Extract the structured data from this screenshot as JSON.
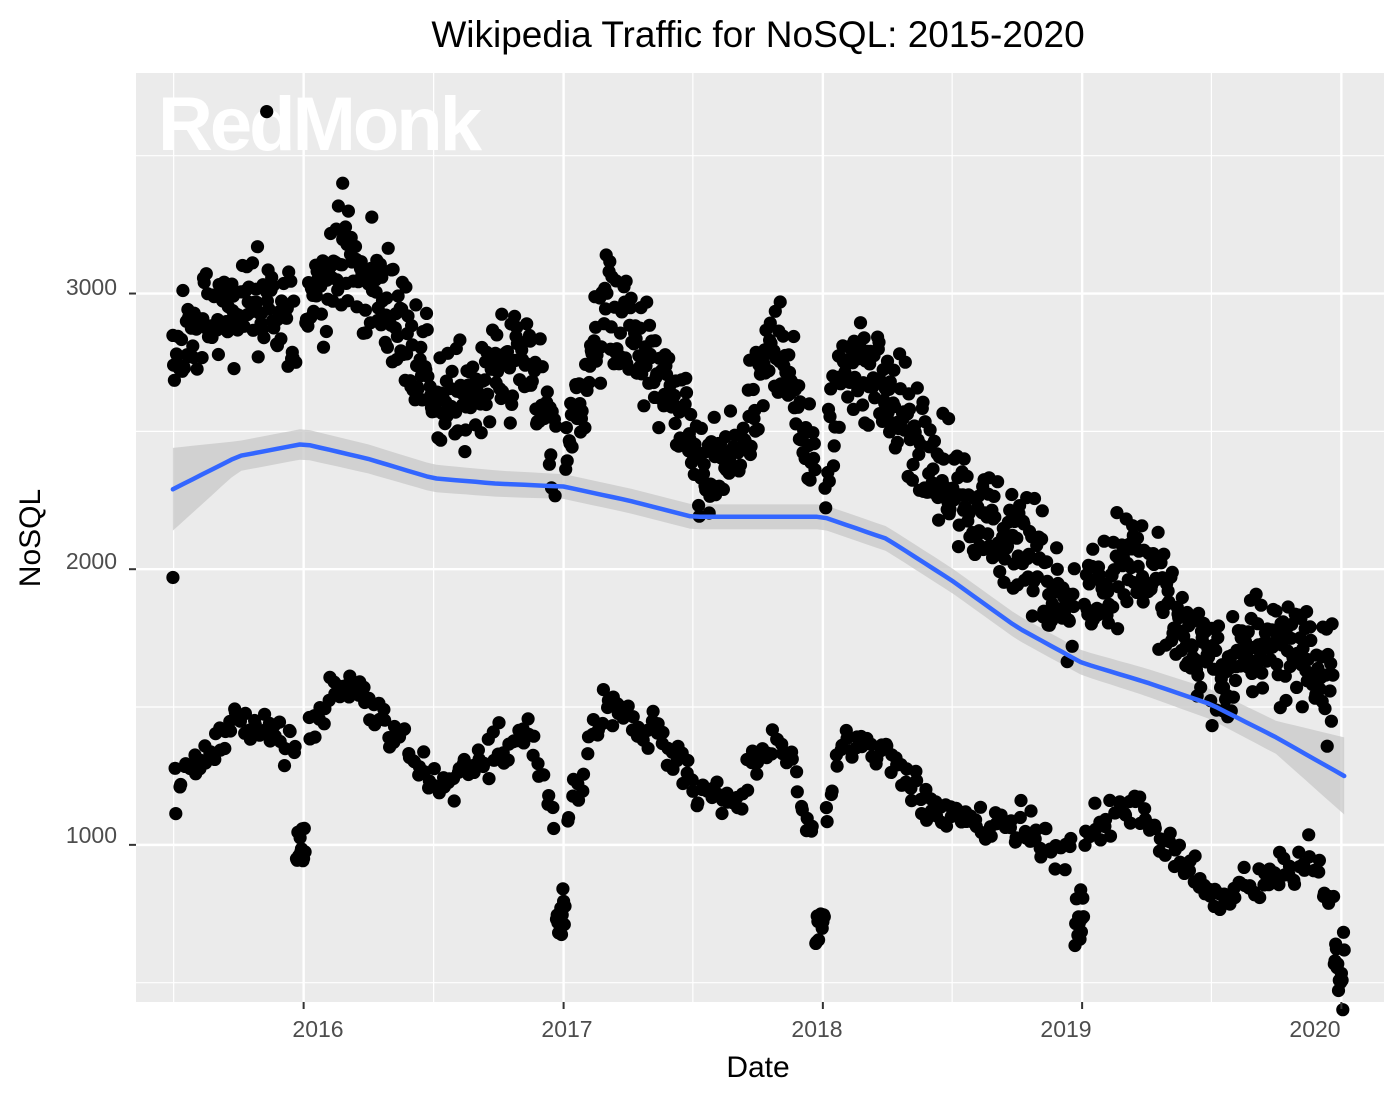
{
  "chart_data": {
    "type": "scatter",
    "title": "Wikipedia Traffic for NoSQL: 2015-2020",
    "xlabel": "Date",
    "ylabel": "NoSQL",
    "watermark": "RedMonk",
    "x_ticks": [
      "2016",
      "2017",
      "2018",
      "2019",
      "2020"
    ],
    "y_ticks": [
      "1000",
      "2000",
      "3000"
    ],
    "xlim": [
      "2015-05-10",
      "2020-03-01"
    ],
    "ylim": [
      430,
      3800
    ],
    "grid": true,
    "panel_background": "#ebebeb",
    "point_color": "#000000",
    "smooth_color": "#3366ff",
    "ribbon_color": "#c8c8c8",
    "outliers": [
      {
        "date": "2015-11-10",
        "value": 3660
      },
      {
        "date": "2015-07-01",
        "value": 1970
      },
      {
        "date": "2016-02-25",
        "value": 3400
      }
    ],
    "series": [
      {
        "kind": "weekday",
        "anchors": [
          [
            "2015-07-01",
            2800
          ],
          [
            "2015-10-01",
            2980
          ],
          [
            "2015-12-15",
            2880
          ],
          [
            "2016-03-01",
            3150
          ],
          [
            "2016-05-15",
            2880
          ],
          [
            "2016-07-15",
            2580
          ],
          [
            "2016-09-15",
            2720
          ],
          [
            "2016-11-15",
            2750
          ],
          [
            "2016-12-25",
            2350
          ],
          [
            "2017-03-01",
            2950
          ],
          [
            "2017-05-15",
            2700
          ],
          [
            "2017-07-15",
            2330
          ],
          [
            "2017-09-01",
            2400
          ],
          [
            "2017-11-01",
            2850
          ],
          [
            "2017-12-25",
            2300
          ],
          [
            "2018-02-01",
            2760
          ],
          [
            "2018-04-01",
            2650
          ],
          [
            "2018-06-01",
            2380
          ],
          [
            "2018-08-01",
            2200
          ],
          [
            "2018-10-01",
            2140
          ],
          [
            "2018-12-01",
            1880
          ],
          [
            "2019-01-15",
            1950
          ],
          [
            "2019-03-15",
            2080
          ],
          [
            "2019-05-15",
            1800
          ],
          [
            "2019-07-15",
            1620
          ],
          [
            "2019-09-15",
            1740
          ],
          [
            "2019-11-15",
            1700
          ],
          [
            "2020-01-05",
            1500
          ]
        ]
      },
      {
        "kind": "weekend",
        "anchors": [
          [
            "2015-07-01",
            1180
          ],
          [
            "2015-10-01",
            1450
          ],
          [
            "2015-12-15",
            1360
          ],
          [
            "2016-03-01",
            1580
          ],
          [
            "2016-05-15",
            1420
          ],
          [
            "2016-07-15",
            1180
          ],
          [
            "2016-09-15",
            1320
          ],
          [
            "2016-11-15",
            1440
          ],
          [
            "2016-12-25",
            1000
          ],
          [
            "2017-03-01",
            1520
          ],
          [
            "2017-05-15",
            1390
          ],
          [
            "2017-07-15",
            1180
          ],
          [
            "2017-09-01",
            1150
          ],
          [
            "2017-11-01",
            1420
          ],
          [
            "2017-12-25",
            950
          ],
          [
            "2018-02-01",
            1400
          ],
          [
            "2018-04-01",
            1330
          ],
          [
            "2018-06-01",
            1120
          ],
          [
            "2018-08-01",
            1080
          ],
          [
            "2018-10-01",
            1080
          ],
          [
            "2018-12-01",
            950
          ],
          [
            "2019-01-15",
            1040
          ],
          [
            "2019-03-15",
            1150
          ],
          [
            "2019-05-15",
            950
          ],
          [
            "2019-07-15",
            780
          ],
          [
            "2019-09-15",
            880
          ],
          [
            "2019-11-15",
            950
          ],
          [
            "2020-01-05",
            700
          ]
        ]
      }
    ],
    "smooth": {
      "values": [
        [
          "2015-07-01",
          2290
        ],
        [
          "2015-10-01",
          2410
        ],
        [
          "2016-01-01",
          2455
        ],
        [
          "2016-04-01",
          2400
        ],
        [
          "2016-07-01",
          2330
        ],
        [
          "2016-10-01",
          2310
        ],
        [
          "2017-01-01",
          2300
        ],
        [
          "2017-04-01",
          2250
        ],
        [
          "2017-07-01",
          2190
        ],
        [
          "2017-10-01",
          2190
        ],
        [
          "2018-01-01",
          2190
        ],
        [
          "2018-04-01",
          2110
        ],
        [
          "2018-07-01",
          1960
        ],
        [
          "2018-10-01",
          1790
        ],
        [
          "2019-01-01",
          1660
        ],
        [
          "2019-04-01",
          1590
        ],
        [
          "2019-07-01",
          1510
        ],
        [
          "2019-10-01",
          1390
        ],
        [
          "2020-01-05",
          1250
        ]
      ],
      "band_halfwidth": [
        [
          "2015-07-01",
          150
        ],
        [
          "2015-10-01",
          55
        ],
        [
          "2016-01-01",
          55
        ],
        [
          "2017-01-01",
          45
        ],
        [
          "2018-01-01",
          45
        ],
        [
          "2019-01-01",
          45
        ],
        [
          "2019-10-01",
          60
        ],
        [
          "2020-01-05",
          140
        ]
      ]
    }
  }
}
